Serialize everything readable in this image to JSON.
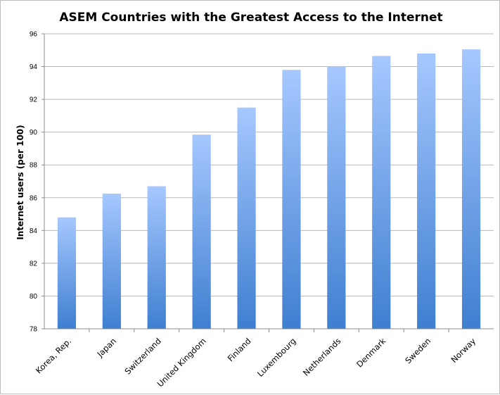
{
  "chart_data": {
    "type": "bar",
    "title": "ASEM Countries with the Greatest Access to the Internet",
    "xlabel": "",
    "ylabel": "Internet users (per 100)",
    "categories": [
      "Korea, Rep.",
      "Japan",
      "Switzerland",
      "United Kingdom",
      "Finland",
      "Luxembourg",
      "Netherlands",
      "Denmark",
      "Sweden",
      "Norway"
    ],
    "values": [
      84.8,
      86.25,
      86.7,
      89.85,
      91.5,
      93.8,
      94.0,
      94.65,
      94.8,
      95.05
    ],
    "ylim": [
      78,
      96
    ],
    "yticks": [
      "78",
      "80",
      "82",
      "84",
      "86",
      "88",
      "90",
      "92",
      "94",
      "96"
    ],
    "grid": true,
    "legend": "none",
    "colors": {
      "bar_top": "#a6c8ff",
      "bar_bottom": "#3f7fd0"
    }
  }
}
